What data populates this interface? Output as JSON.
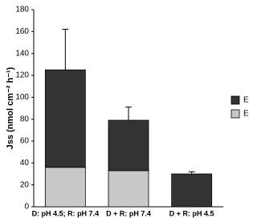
{
  "chart_data": {
    "type": "stacked-bar",
    "y_label": "Jss (nmol cm⁻² h⁻¹)",
    "categories": [
      "D: pH 4.5; R: pH 7.4",
      "D + R: pH 7.4",
      "D + R: pH 4.5"
    ],
    "series": [
      {
        "name": "E",
        "color": "#c8c8c8",
        "values": [
          36,
          33,
          0
        ]
      },
      {
        "name": "E",
        "color": "#333333",
        "values": [
          89,
          46,
          30
        ]
      }
    ],
    "errors": [
      37,
      12,
      2
    ],
    "ylim": [
      0,
      180
    ],
    "yticks": [
      0,
      20,
      40,
      60,
      80,
      100,
      120,
      140,
      160,
      180
    ]
  }
}
